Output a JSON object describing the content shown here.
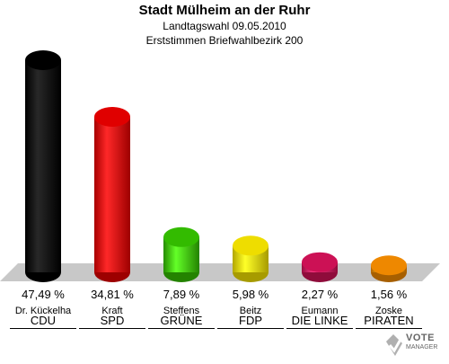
{
  "header": {
    "title": "Stadt Mülheim an der Ruhr",
    "subtitle1": "Landtagswahl 09.05.2010",
    "subtitle2": "Erststimmen Briefwahlbezirk 200"
  },
  "chart_data": {
    "type": "bar",
    "title": "Stadt Mülheim an der Ruhr",
    "categories": [
      "CDU",
      "SPD",
      "GRÜNE",
      "FDP",
      "DIE LINKE",
      "PIRATEN"
    ],
    "candidates": [
      "Dr. Kückelha",
      "Kraft",
      "Steffens",
      "Beitz",
      "Eumann",
      "Zoske"
    ],
    "values": [
      47.49,
      34.81,
      7.89,
      5.98,
      2.27,
      1.56
    ],
    "value_labels": [
      "47,49 %",
      "34,81 %",
      "7,89 %",
      "5,98 %",
      "2,27 %",
      "1,56 %"
    ],
    "colors": [
      "#000000",
      "#e00000",
      "#33bb00",
      "#eedd00",
      "#cc1155",
      "#ee8800"
    ],
    "ylim": [
      0,
      50
    ],
    "grid": false
  },
  "logo": {
    "line1": "VOTE",
    "line2": "MANAGER"
  }
}
